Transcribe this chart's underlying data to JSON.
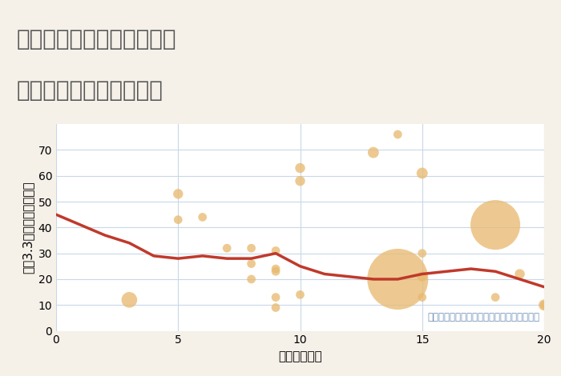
{
  "title_line1": "兵庫県豊岡市日高町山田の",
  "title_line2": "駅距離別中古戸建て価格",
  "xlabel": "駅距離（分）",
  "ylabel": "坪（3.3㎡）単価（万円）",
  "background_color": "#f5f0e8",
  "plot_bg_color": "#ffffff",
  "title_bg_color": "#ffffff",
  "xlim": [
    0,
    20
  ],
  "ylim": [
    0,
    80
  ],
  "yticks": [
    0,
    10,
    20,
    30,
    40,
    50,
    60,
    70
  ],
  "xticks": [
    0,
    5,
    10,
    15,
    20
  ],
  "scatter_x": [
    3,
    5,
    5,
    6,
    7,
    8,
    8,
    8,
    9,
    9,
    9,
    9,
    9,
    10,
    10,
    10,
    13,
    14,
    14,
    15,
    15,
    15,
    15,
    18,
    18,
    19,
    20,
    20
  ],
  "scatter_y": [
    12,
    53,
    43,
    44,
    32,
    20,
    26,
    32,
    24,
    9,
    13,
    23,
    31,
    58,
    63,
    14,
    69,
    76,
    20,
    61,
    21,
    30,
    13,
    41,
    13,
    22,
    10,
    10
  ],
  "scatter_size": [
    200,
    80,
    60,
    60,
    60,
    60,
    60,
    60,
    60,
    60,
    60,
    60,
    60,
    80,
    80,
    60,
    100,
    60,
    3000,
    100,
    80,
    60,
    60,
    2000,
    60,
    80,
    60,
    100
  ],
  "scatter_color": "#e8b86d",
  "scatter_alpha": 0.75,
  "line_x": [
    0,
    1,
    2,
    3,
    4,
    5,
    6,
    7,
    8,
    9,
    10,
    11,
    12,
    13,
    14,
    15,
    16,
    17,
    18,
    19,
    20
  ],
  "line_y": [
    45,
    41,
    37,
    34,
    29,
    28,
    29,
    28,
    28,
    30,
    25,
    22,
    21,
    20,
    20,
    22,
    23,
    24,
    23,
    20,
    17
  ],
  "line_color": "#c0392b",
  "line_width": 2.5,
  "annotation": "円の大きさは、取引のあった物件面積を示す",
  "annotation_color": "#6b8fb5",
  "title_color": "#555555",
  "title_fontsize": 20,
  "axis_label_fontsize": 11,
  "tick_fontsize": 10,
  "grid_color": "#c8d8e8"
}
